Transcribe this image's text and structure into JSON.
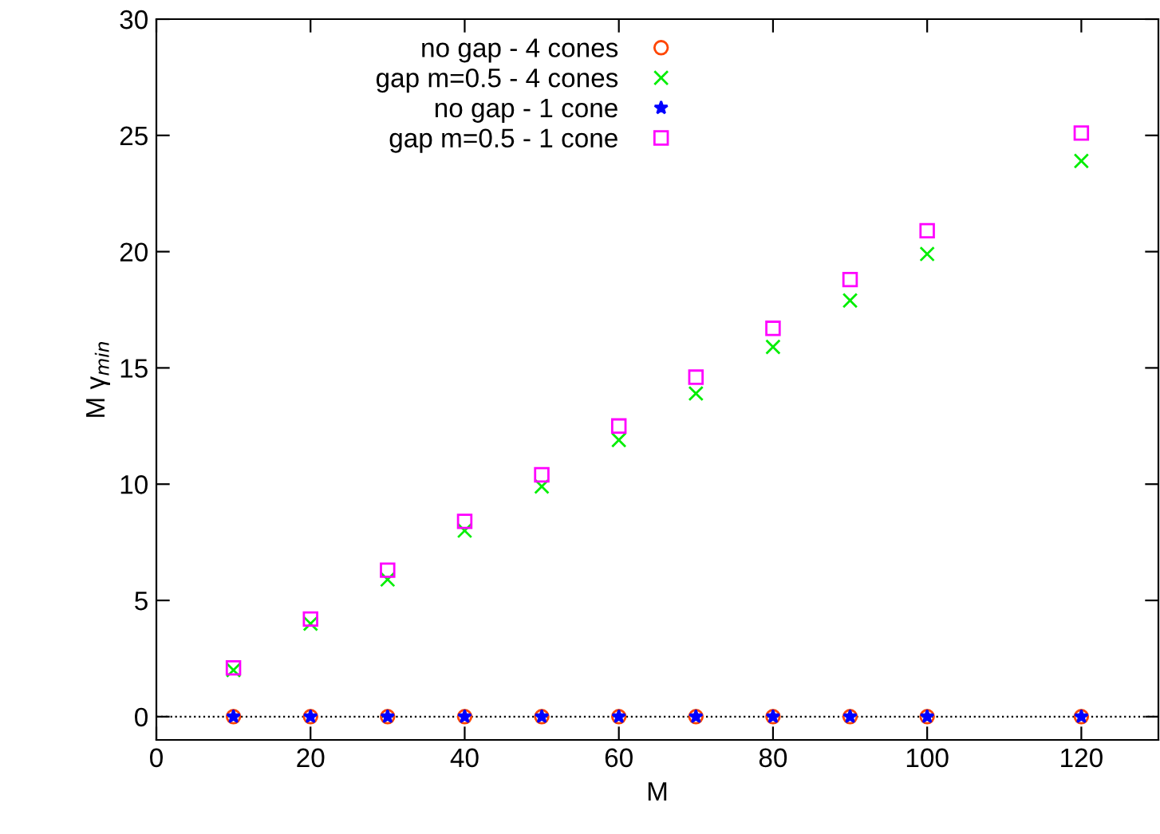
{
  "chart_data": {
    "type": "scatter",
    "xlabel": "M",
    "ylabel": "M γ$_{min}$",
    "xlim": [
      0,
      130
    ],
    "xticks": [
      0,
      20,
      40,
      60,
      80,
      100,
      120
    ],
    "ylim": [
      -1,
      30
    ],
    "yticks": [
      0,
      5,
      10,
      15,
      20,
      25,
      30
    ],
    "grid": false,
    "legend": "top left",
    "ref_lines": [
      {
        "axis": "y",
        "value": 0,
        "color": "#000000",
        "line_style": "dotted"
      }
    ],
    "series": [
      {
        "name": "no gap - 4 cones",
        "color": "#ff4500",
        "marker": "circle",
        "x": [
          10,
          20,
          30,
          40,
          50,
          60,
          70,
          80,
          90,
          100,
          120
        ],
        "values": [
          0,
          0,
          0,
          0,
          0,
          0,
          0,
          0,
          0,
          0,
          0
        ]
      },
      {
        "name": "gap m=0.5 - 4 cones",
        "color": "#00ee00",
        "marker": "cross",
        "x": [
          10,
          20,
          30,
          40,
          50,
          60,
          70,
          80,
          90,
          100,
          120
        ],
        "values": [
          2.0,
          4.0,
          5.9,
          8.0,
          9.9,
          11.9,
          13.9,
          15.9,
          17.9,
          19.9,
          23.9
        ]
      },
      {
        "name": "no gap - 1 cone",
        "color": "#0000ff",
        "marker": "star",
        "x": [
          10,
          20,
          30,
          40,
          50,
          60,
          70,
          80,
          90,
          100,
          120
        ],
        "values": [
          0,
          0,
          0,
          0,
          0,
          0,
          0,
          0,
          0,
          0,
          0
        ]
      },
      {
        "name": "gap m=0.5 - 1 cone",
        "color": "#ff00ff",
        "marker": "square",
        "x": [
          10,
          20,
          30,
          40,
          50,
          60,
          70,
          80,
          90,
          100,
          120
        ],
        "values": [
          2.1,
          4.2,
          6.3,
          8.4,
          10.4,
          12.5,
          14.6,
          16.7,
          18.8,
          20.9,
          25.1
        ]
      }
    ]
  }
}
